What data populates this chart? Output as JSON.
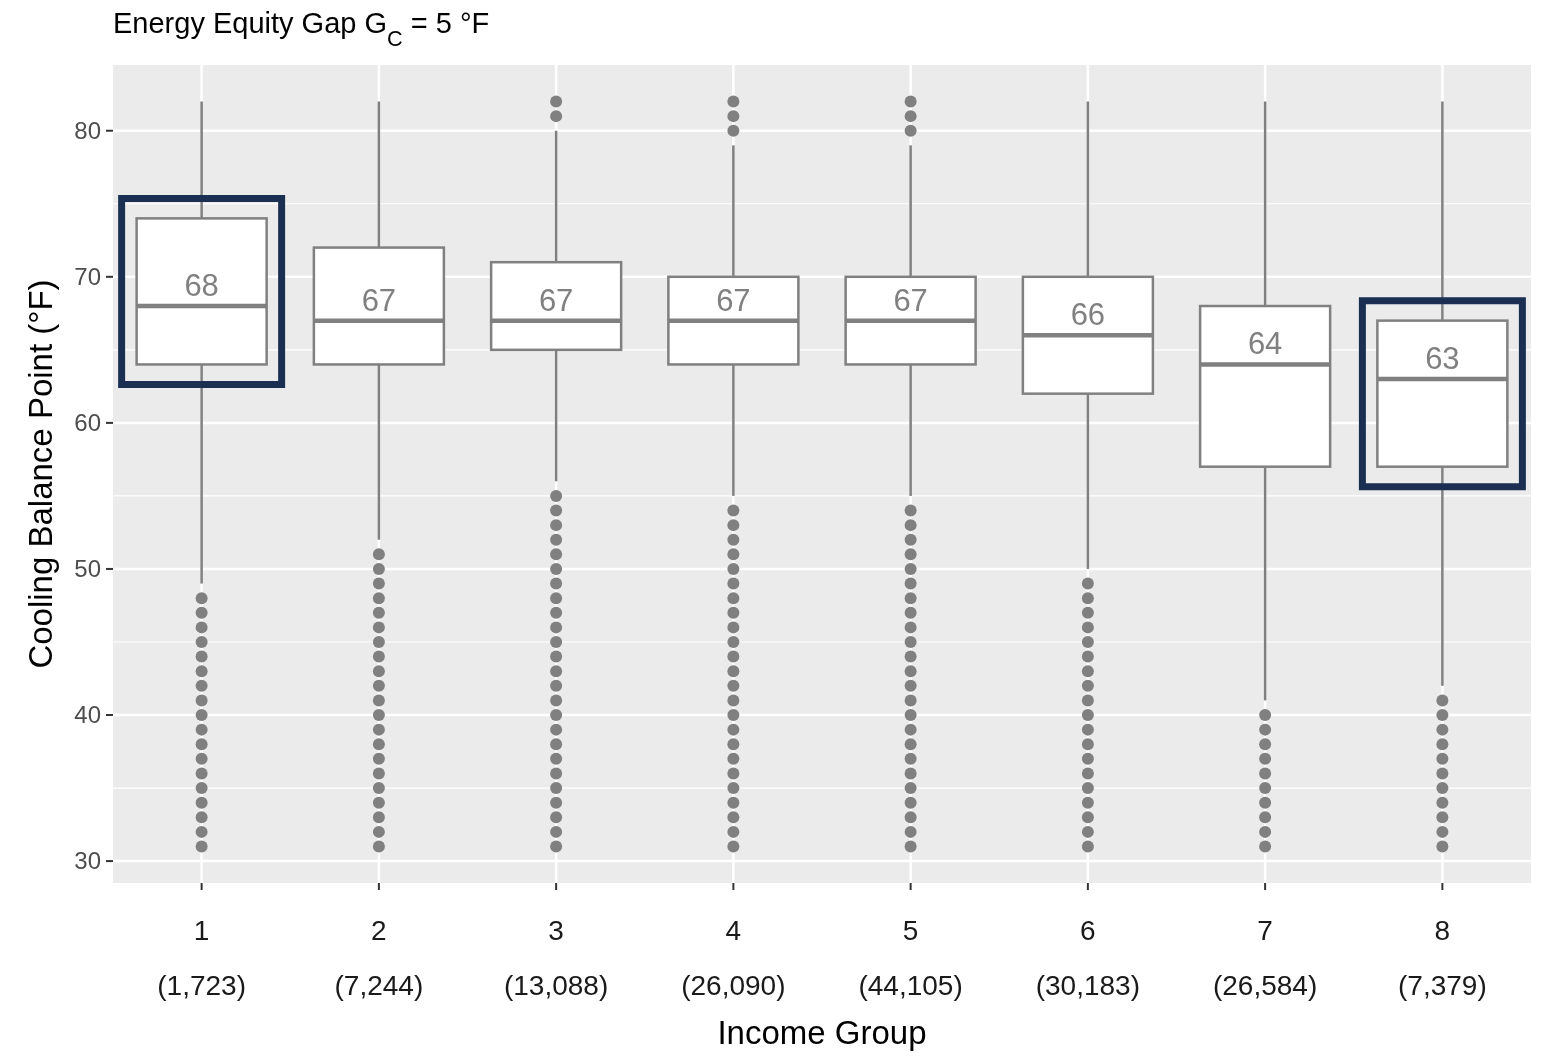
{
  "chart_data": {
    "type": "box",
    "title": "Energy Equity Gap G$_{C}$ = 5 °F",
    "xlabel": "Income Group",
    "ylabel": "Cooling Balance Point (°F)",
    "categories": [
      "1 (1,723)",
      "2 (7,244)",
      "3 (13,088)",
      "4 (26,090)",
      "5 (44,105)",
      "6 (30,183)",
      "7 (26,584)",
      "8 (7,379)"
    ],
    "boxes": [
      {
        "low": 49,
        "q1": 64,
        "median": 68,
        "q3": 74,
        "high": 82,
        "outliers": [
          31,
          32,
          33,
          34,
          35,
          36,
          37,
          38,
          39,
          40,
          41,
          42,
          43,
          44,
          45,
          46,
          47,
          48
        ]
      },
      {
        "low": 52,
        "q1": 64,
        "median": 67,
        "q3": 72,
        "high": 82,
        "outliers": [
          31,
          32,
          33,
          34,
          35,
          36,
          37,
          38,
          39,
          40,
          41,
          42,
          43,
          44,
          45,
          46,
          47,
          48,
          49,
          50,
          51
        ]
      },
      {
        "low": 56,
        "q1": 65,
        "median": 67,
        "q3": 71,
        "high": 80,
        "outliers": [
          31,
          32,
          33,
          34,
          35,
          36,
          37,
          38,
          39,
          40,
          41,
          42,
          43,
          44,
          45,
          46,
          47,
          48,
          49,
          50,
          51,
          52,
          53,
          54,
          55,
          81,
          82
        ]
      },
      {
        "low": 55,
        "q1": 64,
        "median": 67,
        "q3": 70,
        "high": 79,
        "outliers": [
          31,
          32,
          33,
          34,
          35,
          36,
          37,
          38,
          39,
          40,
          41,
          42,
          43,
          44,
          45,
          46,
          47,
          48,
          49,
          50,
          51,
          52,
          53,
          54,
          80,
          81,
          82
        ]
      },
      {
        "low": 55,
        "q1": 64,
        "median": 67,
        "q3": 70,
        "high": 79,
        "outliers": [
          31,
          32,
          33,
          34,
          35,
          36,
          37,
          38,
          39,
          40,
          41,
          42,
          43,
          44,
          45,
          46,
          47,
          48,
          49,
          50,
          51,
          52,
          53,
          54,
          80,
          81,
          82
        ]
      },
      {
        "low": 50,
        "q1": 62,
        "median": 66,
        "q3": 70,
        "high": 82,
        "outliers": [
          31,
          32,
          33,
          34,
          35,
          36,
          37,
          38,
          39,
          40,
          41,
          42,
          43,
          44,
          45,
          46,
          47,
          48,
          49
        ]
      },
      {
        "low": 41,
        "q1": 57,
        "median": 64,
        "q3": 68,
        "high": 82,
        "outliers": [
          31,
          32,
          33,
          34,
          35,
          36,
          37,
          38,
          39,
          40
        ]
      },
      {
        "low": 42,
        "q1": 57,
        "median": 63,
        "q3": 67,
        "high": 82,
        "outliers": [
          31,
          32,
          33,
          34,
          35,
          36,
          37,
          38,
          39,
          40,
          41
        ]
      }
    ],
    "color": "#808080",
    "annotations": [
      {
        "text": "68",
        "x": "1 (1,723)",
        "y": 68
      },
      {
        "text": "67",
        "x": "2 (7,244)",
        "y": 67
      },
      {
        "text": "67",
        "x": "3 (13,088)",
        "y": 67
      },
      {
        "text": "67",
        "x": "4 (26,090)",
        "y": 67
      },
      {
        "text": "67",
        "x": "5 (44,105)",
        "y": 67
      },
      {
        "text": "66",
        "x": "6 (30,183)",
        "y": 66
      },
      {
        "text": "64",
        "x": "7 (26,584)",
        "y": 64
      },
      {
        "text": "63",
        "x": "8 (7,379)",
        "y": 63
      }
    ],
    "bands": [
      {
        "axis": "x",
        "from": "1 (1,723)",
        "to": "1 (1,723)",
        "color": "#1b2f52"
      },
      {
        "axis": "x",
        "from": "8 (7,379)",
        "to": "8 (7,379)",
        "color": "#1b2f52"
      }
    ],
    "ylim": [
      28.5,
      84.5
    ],
    "yticks": [
      30,
      40,
      50,
      60,
      70,
      80
    ],
    "grid": true
  }
}
